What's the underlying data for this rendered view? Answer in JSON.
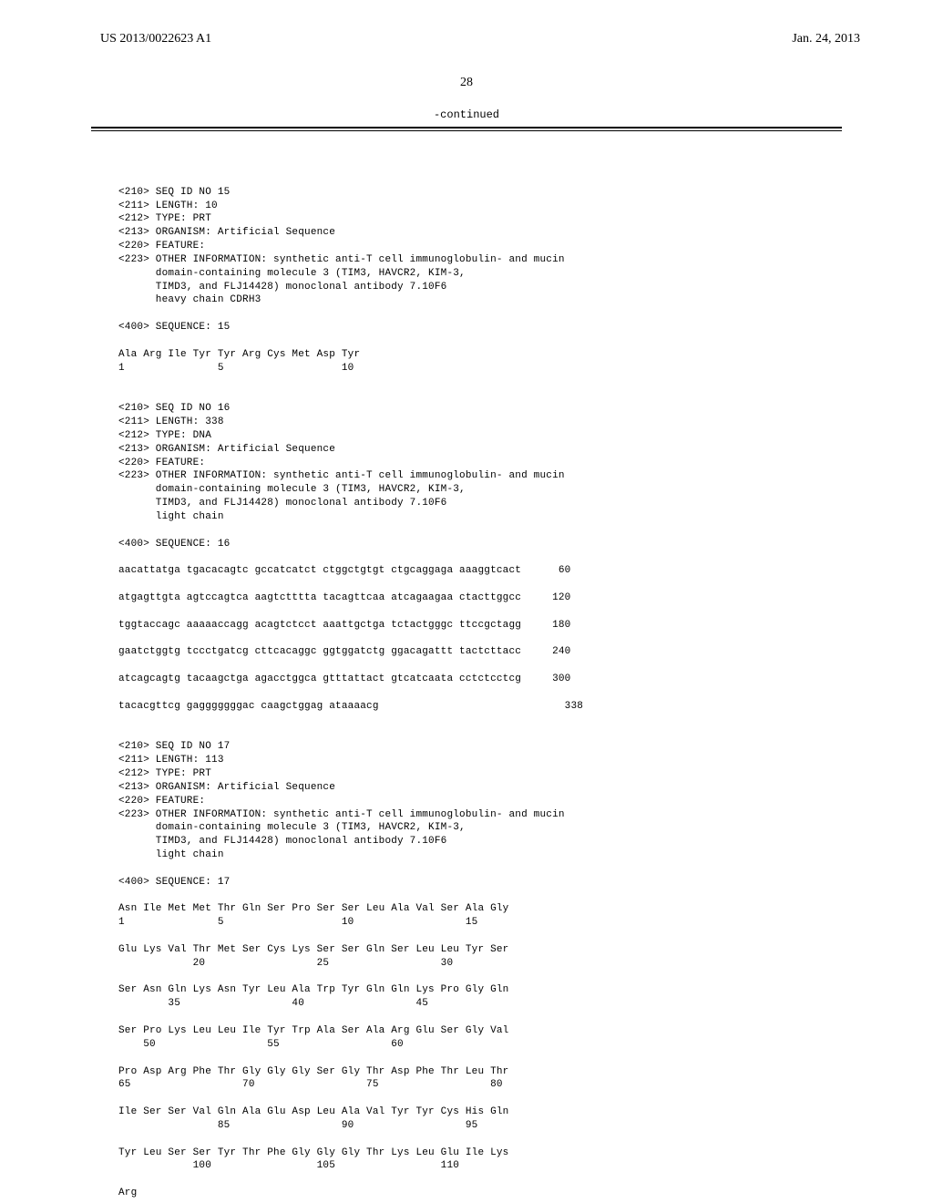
{
  "header": {
    "left": "US 2013/0022623 A1",
    "right": "Jan. 24, 2013"
  },
  "page_number": "28",
  "continued_label": "-continued",
  "seq15": {
    "l1": "<210> SEQ ID NO 15",
    "l2": "<211> LENGTH: 10",
    "l3": "<212> TYPE: PRT",
    "l4": "<213> ORGANISM: Artificial Sequence",
    "l5": "<220> FEATURE:",
    "l6": "<223> OTHER INFORMATION: synthetic anti-T cell immunoglobulin- and mucin",
    "l7": "      domain-containing molecule 3 (TIM3, HAVCR2, KIM-3,",
    "l8": "      TIMD3, and FLJ14428) monoclonal antibody 7.10F6",
    "l9": "      heavy chain CDRH3",
    "seq_label": "<400> SEQUENCE: 15",
    "aa1": "Ala Arg Ile Tyr Tyr Arg Cys Met Asp Tyr",
    "num1": "1               5                   10"
  },
  "seq16": {
    "l1": "<210> SEQ ID NO 16",
    "l2": "<211> LENGTH: 338",
    "l3": "<212> TYPE: DNA",
    "l4": "<213> ORGANISM: Artificial Sequence",
    "l5": "<220> FEATURE:",
    "l6": "<223> OTHER INFORMATION: synthetic anti-T cell immunoglobulin- and mucin",
    "l7": "      domain-containing molecule 3 (TIM3, HAVCR2, KIM-3,",
    "l8": "      TIMD3, and FLJ14428) monoclonal antibody 7.10F6",
    "l9": "      light chain",
    "seq_label": "<400> SEQUENCE: 16",
    "d1": "aacattatga tgacacagtc gccatcatct ctggctgtgt ctgcaggaga aaaggtcact      60",
    "d2": "atgagttgta agtccagtca aagtctttta tacagttcaa atcagaagaa ctacttggcc     120",
    "d3": "tggtaccagc aaaaaccagg acagtctcct aaattgctga tctactgggc ttccgctagg     180",
    "d4": "gaatctggtg tccctgatcg cttcacaggc ggtggatctg ggacagattt tactcttacc     240",
    "d5": "atcagcagtg tacaagctga agacctggca gtttattact gtcatcaata cctctcctcg     300",
    "d6": "tacacgttcg gagggggggac caagctggag ataaaacg                              338"
  },
  "seq17": {
    "l1": "<210> SEQ ID NO 17",
    "l2": "<211> LENGTH: 113",
    "l3": "<212> TYPE: PRT",
    "l4": "<213> ORGANISM: Artificial Sequence",
    "l5": "<220> FEATURE:",
    "l6": "<223> OTHER INFORMATION: synthetic anti-T cell immunoglobulin- and mucin",
    "l7": "      domain-containing molecule 3 (TIM3, HAVCR2, KIM-3,",
    "l8": "      TIMD3, and FLJ14428) monoclonal antibody 7.10F6",
    "l9": "      light chain",
    "seq_label": "<400> SEQUENCE: 17",
    "aa1": "Asn Ile Met Met Thr Gln Ser Pro Ser Ser Leu Ala Val Ser Ala Gly",
    "num1": "1               5                   10                  15",
    "aa2": "Glu Lys Val Thr Met Ser Cys Lys Ser Ser Gln Ser Leu Leu Tyr Ser",
    "num2": "            20                  25                  30",
    "aa3": "Ser Asn Gln Lys Asn Tyr Leu Ala Trp Tyr Gln Gln Lys Pro Gly Gln",
    "num3": "        35                  40                  45",
    "aa4": "Ser Pro Lys Leu Leu Ile Tyr Trp Ala Ser Ala Arg Glu Ser Gly Val",
    "num4": "    50                  55                  60",
    "aa5": "Pro Asp Arg Phe Thr Gly Gly Gly Ser Gly Thr Asp Phe Thr Leu Thr",
    "num5": "65                  70                  75                  80",
    "aa6": "Ile Ser Ser Val Gln Ala Glu Asp Leu Ala Val Tyr Tyr Cys His Gln",
    "num6": "                85                  90                  95",
    "aa7": "Tyr Leu Ser Ser Tyr Thr Phe Gly Gly Gly Thr Lys Leu Glu Ile Lys",
    "num7": "            100                 105                 110",
    "aa8": "Arg"
  }
}
